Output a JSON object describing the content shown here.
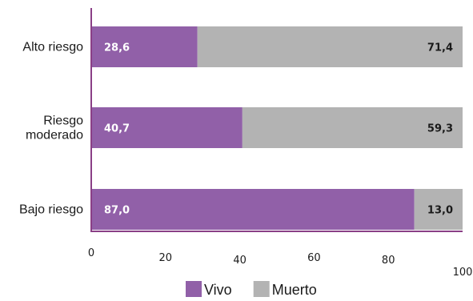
{
  "chart_data": {
    "type": "bar",
    "orientation": "horizontal",
    "stacked": true,
    "categories": [
      "Alto riesgo",
      "Riesgo\nmoderado",
      "Bajo riesgo"
    ],
    "series": [
      {
        "name": "Vivo",
        "values": [
          28.6,
          40.7,
          87.0
        ],
        "labels": [
          "28,6",
          "40,7",
          "87,0"
        ],
        "color": "#9160a8"
      },
      {
        "name": "Muerto",
        "values": [
          71.4,
          59.3,
          13.0
        ],
        "labels": [
          "71,4",
          "59,3",
          "13,0"
        ],
        "color": "#b3b3b3"
      }
    ],
    "xlim": [
      0,
      100
    ],
    "xticks": [
      "0",
      "20",
      "40",
      "60",
      "80",
      "100"
    ],
    "axis_color": "#8a3f86",
    "grid": false,
    "legend_position": "bottom"
  }
}
